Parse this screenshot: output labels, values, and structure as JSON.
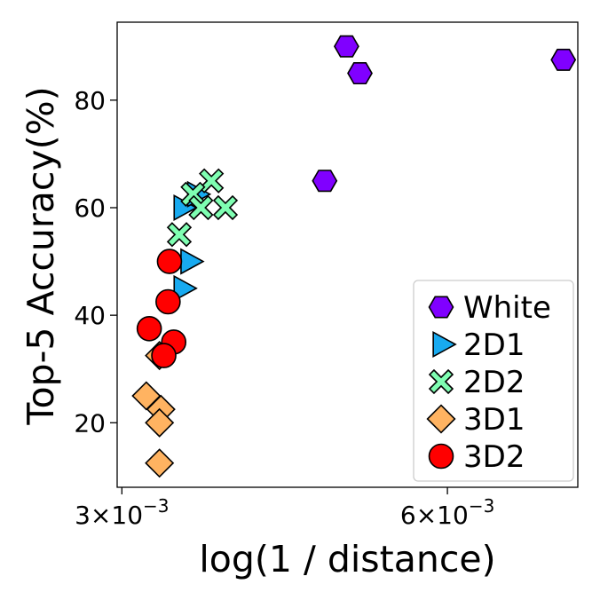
{
  "chart_data": {
    "type": "scatter",
    "xlabel": "log(1 / distance)",
    "ylabel": "Top-5 Accuracy(%)",
    "x_scale": "log",
    "xlim": [
      0.00297,
      0.00792
    ],
    "ylim": [
      8.0,
      94.5
    ],
    "x_ticks": [
      {
        "value": 0.003,
        "label_base": "3",
        "label_mult": "×",
        "label_pow_base": "10",
        "label_exp": "−3"
      },
      {
        "value": 0.006,
        "label_base": "6",
        "label_mult": "×",
        "label_pow_base": "10",
        "label_exp": "−3"
      }
    ],
    "y_ticks": [
      {
        "value": 20,
        "label": "20"
      },
      {
        "value": 40,
        "label": "40"
      },
      {
        "value": 60,
        "label": "60"
      },
      {
        "value": 80,
        "label": "80"
      }
    ],
    "grid": false,
    "legend_position": "lower-right",
    "series": [
      {
        "name": "White",
        "marker": "hexagon",
        "color": "#8000ff",
        "points": [
          {
            "x": 0.00484,
            "y": 90.0
          },
          {
            "x": 0.00498,
            "y": 85.0
          },
          {
            "x": 0.00462,
            "y": 65.0
          },
          {
            "x": 0.00768,
            "y": 87.5
          }
        ]
      },
      {
        "name": "2D1",
        "marker": "triangle-right",
        "color": "#18aaf0",
        "points": [
          {
            "x": 0.00341,
            "y": 60.0
          },
          {
            "x": 0.00351,
            "y": 62.5
          },
          {
            "x": 0.00346,
            "y": 50.0
          },
          {
            "x": 0.00341,
            "y": 45.0
          }
        ]
      },
      {
        "name": "2D2",
        "marker": "x-cross",
        "color": "#7ffeb2",
        "points": [
          {
            "x": 0.00363,
            "y": 65.0
          },
          {
            "x": 0.00349,
            "y": 62.5
          },
          {
            "x": 0.00355,
            "y": 60.0
          },
          {
            "x": 0.00374,
            "y": 60.0
          },
          {
            "x": 0.00339,
            "y": 55.0
          }
        ]
      },
      {
        "name": "3D1",
        "marker": "diamond",
        "color": "#ffb361",
        "points": [
          {
            "x": 0.00316,
            "y": 25.0
          },
          {
            "x": 0.00325,
            "y": 32.5
          },
          {
            "x": 0.00326,
            "y": 22.5
          },
          {
            "x": 0.00325,
            "y": 20.0
          },
          {
            "x": 0.00325,
            "y": 12.5
          }
        ]
      },
      {
        "name": "3D2",
        "marker": "circle",
        "color": "#ff0000",
        "points": [
          {
            "x": 0.00332,
            "y": 50.0
          },
          {
            "x": 0.00331,
            "y": 42.5
          },
          {
            "x": 0.00318,
            "y": 37.5
          },
          {
            "x": 0.00335,
            "y": 35.0
          },
          {
            "x": 0.00328,
            "y": 32.5
          }
        ]
      }
    ]
  }
}
